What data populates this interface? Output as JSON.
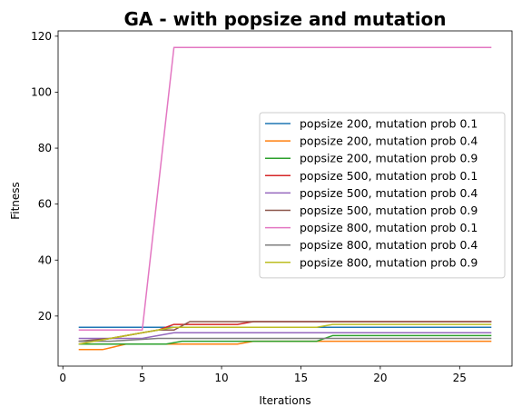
{
  "chart_data": {
    "type": "line",
    "title": "GA - with popsize and mutation",
    "xlabel": "Iterations",
    "ylabel": "Fitness",
    "xlim": [
      -0.3,
      28.3
    ],
    "ylim": [
      2.1,
      121.9
    ],
    "xticks": [
      0,
      5,
      10,
      15,
      20,
      25
    ],
    "yticks": [
      20,
      40,
      60,
      80,
      100,
      120
    ],
    "grid": false,
    "legend_position": "center-right",
    "series": [
      {
        "name": "popsize 200, mutation prob 0.1",
        "color": "#1f77b4",
        "x": [
          1,
          27
        ],
        "y": [
          16,
          16
        ]
      },
      {
        "name": "popsize 200, mutation prob 0.4",
        "color": "#ff7f0e",
        "x": [
          1,
          2.5,
          4,
          5,
          6,
          11,
          12,
          16,
          27
        ],
        "y": [
          8,
          8,
          10,
          10,
          10,
          10,
          11,
          11,
          11
        ]
      },
      {
        "name": "popsize 200, mutation prob 0.9",
        "color": "#2ca02c",
        "x": [
          1,
          2,
          3,
          5,
          6.5,
          7.5,
          12,
          13,
          16,
          17,
          27
        ],
        "y": [
          10,
          10,
          10,
          10,
          10,
          11,
          11,
          11,
          11,
          13,
          13
        ]
      },
      {
        "name": "popsize 500, mutation prob 0.1",
        "color": "#d62728",
        "x": [
          1,
          2,
          5,
          6,
          7,
          11,
          12,
          27
        ],
        "y": [
          11,
          11,
          14,
          15,
          17,
          17,
          18,
          18
        ]
      },
      {
        "name": "popsize 500, mutation prob 0.4",
        "color": "#9467bd",
        "x": [
          1,
          2,
          5,
          6,
          7,
          27
        ],
        "y": [
          12,
          12,
          12,
          13,
          14,
          14
        ]
      },
      {
        "name": "popsize 500, mutation prob 0.9",
        "color": "#8c564b",
        "x": [
          1,
          3,
          5,
          6,
          7,
          8,
          11,
          12.5,
          27
        ],
        "y": [
          11,
          12,
          14,
          15,
          15,
          18,
          18,
          18,
          18
        ]
      },
      {
        "name": "popsize 800, mutation prob 0.1",
        "color": "#e377c2",
        "x": [
          1,
          5,
          7,
          27
        ],
        "y": [
          15,
          15,
          116,
          116
        ]
      },
      {
        "name": "popsize 800, mutation prob 0.4",
        "color": "#7f7f7f",
        "x": [
          1,
          3,
          6,
          7,
          17,
          27
        ],
        "y": [
          11,
          11,
          12,
          12,
          12,
          12
        ]
      },
      {
        "name": "popsize 800, mutation prob 0.9",
        "color": "#bcbd22",
        "x": [
          1,
          3,
          5,
          7,
          16,
          17,
          27
        ],
        "y": [
          10,
          12,
          14,
          16,
          16,
          17,
          17
        ]
      }
    ]
  }
}
